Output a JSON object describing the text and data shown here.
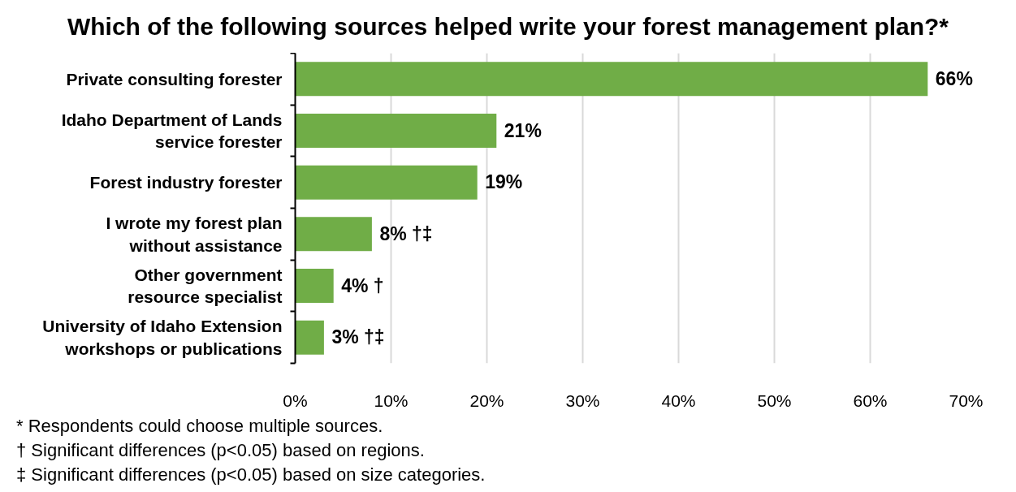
{
  "chart_data": {
    "type": "bar",
    "orientation": "horizontal",
    "title": "Which of the following sources helped write your forest management plan?*",
    "categories": [
      "Private consulting forester",
      "Idaho Department of Lands\nservice forester",
      "Forest industry forester",
      "I wrote my forest plan\nwithout assistance",
      "Other government\nresource specialist",
      "University of Idaho Extension\nworkshops or publications"
    ],
    "values": [
      66,
      21,
      19,
      8,
      4,
      3
    ],
    "color": "#70ad47",
    "value_labels": [
      "66%",
      "21%",
      "19%",
      "8% †‡",
      "4% †",
      "3% †‡"
    ],
    "xlim": [
      0,
      70
    ],
    "xticks": [
      {
        "value": 0,
        "label": "0%"
      },
      {
        "value": 10,
        "label": "10%"
      },
      {
        "value": 20,
        "label": "20%"
      },
      {
        "value": 30,
        "label": "30%"
      },
      {
        "value": 40,
        "label": "40%"
      },
      {
        "value": 50,
        "label": "50%"
      },
      {
        "value": 60,
        "label": "60%"
      },
      {
        "value": 70,
        "label": "70%"
      }
    ],
    "grid": "x",
    "annotations": [
      "* Respondents could choose multiple sources.",
      "† Significant differences (p<0.05) based on regions.",
      "‡ Significant differences (p<0.05) based on size categories."
    ]
  }
}
